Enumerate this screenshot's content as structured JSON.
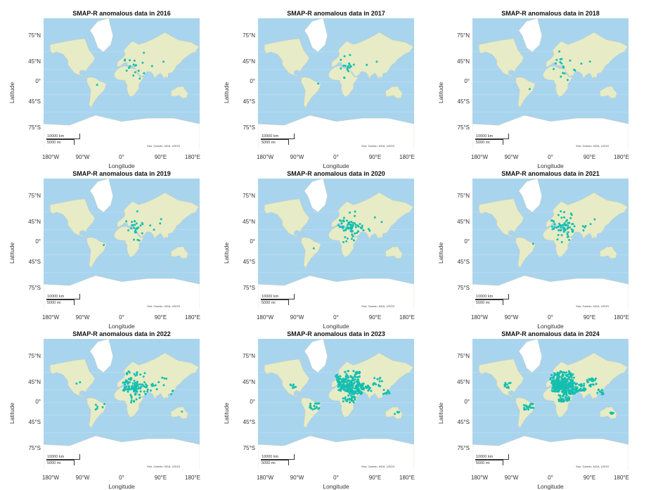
{
  "panels": [
    {
      "title": "SMAP-R anomalous data in 2016",
      "density": 1
    },
    {
      "title": "SMAP-R anomalous data in 2017",
      "density": 1
    },
    {
      "title": "SMAP-R anomalous data in 2018",
      "density": 1
    },
    {
      "title": "SMAP-R anomalous data in 2019",
      "density": 2
    },
    {
      "title": "SMAP-R anomalous data in 2020",
      "density": 3
    },
    {
      "title": "SMAP-R anomalous data in 2021",
      "density": 3
    },
    {
      "title": "SMAP-R anomalous data in 2022",
      "density": 4
    },
    {
      "title": "SMAP-R anomalous data in 2023",
      "density": 6
    },
    {
      "title": "SMAP-R anomalous data in 2024",
      "density": 7
    }
  ],
  "axes": {
    "xlabel": "Longitude",
    "ylabel": "Latitude",
    "yticks": [
      "75°N",
      "45°N",
      "0°",
      "45°S",
      "75°S"
    ],
    "xticks": [
      "180°W",
      "90°W",
      "0°",
      "90°E",
      "180°E"
    ]
  },
  "scalebar": {
    "km": "10000 km",
    "mi": "5000 mi"
  },
  "attribution": "Esri, Garmin, NGA, USGS",
  "colors": {
    "ocean": "#a9d4ee",
    "land": "#e7ecc6",
    "ice": "#ffffff",
    "points": "#15bfb0"
  }
}
